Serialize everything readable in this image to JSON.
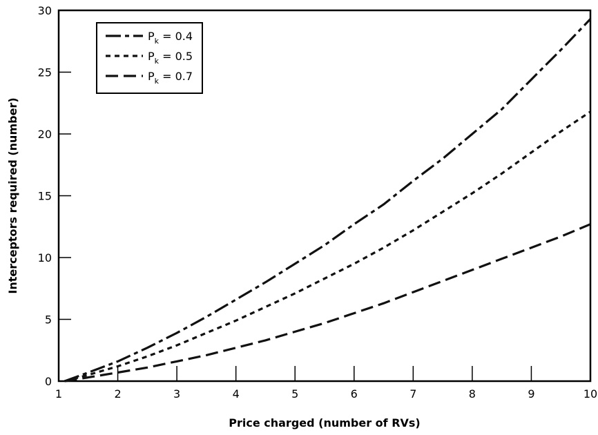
{
  "chart_data": {
    "type": "line",
    "xlabel": "Price charged (number of RVs)",
    "ylabel": "Interceptors required (number)",
    "xlim": [
      1,
      10
    ],
    "ylim": [
      0,
      30
    ],
    "xticks": [
      "1",
      "2",
      "3",
      "4",
      "5",
      "6",
      "7",
      "8",
      "9",
      "10"
    ],
    "yticks": [
      "0",
      "5",
      "10",
      "15",
      "20",
      "25",
      "30"
    ],
    "grid": false,
    "legend_position": "top-left",
    "series": [
      {
        "name": "P",
        "name_subscript": "k",
        "name_suffix": " = 0.4",
        "style": "dash-dot",
        "x": [
          1.1,
          1.5,
          2,
          2.5,
          3,
          3.5,
          4,
          4.5,
          5,
          5.5,
          6,
          6.5,
          7,
          7.5,
          8,
          8.5,
          9,
          9.5,
          10
        ],
        "y": [
          0,
          0.7,
          1.6,
          2.7,
          3.9,
          5.2,
          6.6,
          8.0,
          9.5,
          11.0,
          12.7,
          14.3,
          16.2,
          18.0,
          20.0,
          22.0,
          24.4,
          26.8,
          29.3
        ]
      },
      {
        "name": "P",
        "name_subscript": "k",
        "name_suffix": " = 0.5",
        "style": "dotted",
        "x": [
          1.1,
          1.5,
          2,
          2.5,
          3,
          3.5,
          4,
          4.5,
          5,
          5.5,
          6,
          6.5,
          7,
          7.5,
          8,
          8.5,
          9,
          9.5,
          10
        ],
        "y": [
          0,
          0.5,
          1.2,
          2.0,
          2.9,
          3.9,
          4.9,
          6.0,
          7.1,
          8.3,
          9.5,
          10.8,
          12.2,
          13.7,
          15.2,
          16.8,
          18.5,
          20.2,
          21.8
        ]
      },
      {
        "name": "P",
        "name_subscript": "k",
        "name_suffix": " = 0.7",
        "style": "dashed",
        "x": [
          1.1,
          1.5,
          2,
          2.5,
          3,
          3.5,
          4,
          4.5,
          5,
          5.5,
          6,
          6.5,
          7,
          7.5,
          8,
          8.5,
          9,
          9.5,
          10
        ],
        "y": [
          0,
          0.3,
          0.7,
          1.1,
          1.6,
          2.1,
          2.7,
          3.3,
          4.0,
          4.7,
          5.5,
          6.3,
          7.2,
          8.1,
          9.0,
          9.9,
          10.8,
          11.7,
          12.7
        ]
      }
    ]
  }
}
